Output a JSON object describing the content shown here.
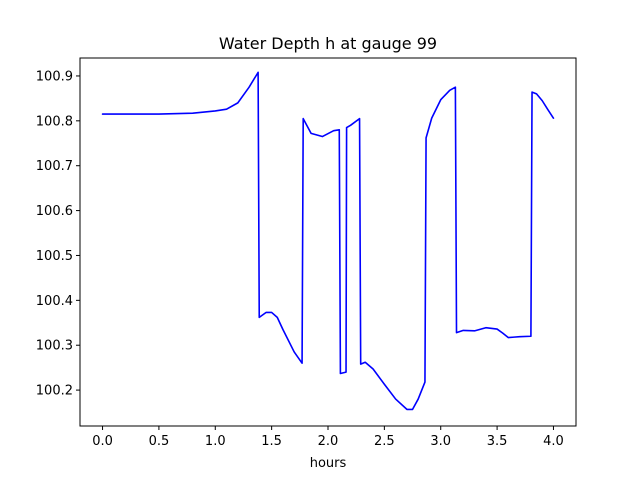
{
  "chart_data": {
    "type": "line",
    "title": "Water Depth h at gauge 99",
    "xlabel": "hours",
    "ylabel": "",
    "xlim": [
      -0.2,
      4.2
    ],
    "ylim": [
      100.12,
      100.94
    ],
    "grid": false,
    "x_ticks": [
      0.0,
      0.5,
      1.0,
      1.5,
      2.0,
      2.5,
      3.0,
      3.5,
      4.0
    ],
    "x_tick_labels": [
      "0.0",
      "0.5",
      "1.0",
      "1.5",
      "2.0",
      "2.5",
      "3.0",
      "3.5",
      "4.0"
    ],
    "y_ticks": [
      100.2,
      100.3,
      100.4,
      100.5,
      100.6,
      100.7,
      100.8,
      100.9
    ],
    "y_tick_labels": [
      "100.2",
      "100.3",
      "100.4",
      "100.5",
      "100.6",
      "100.7",
      "100.8",
      "100.9"
    ],
    "series": [
      {
        "color": "#0000ff",
        "x": [
          0.0,
          0.5,
          0.8,
          1.0,
          1.1,
          1.2,
          1.3,
          1.38,
          1.39,
          1.45,
          1.5,
          1.55,
          1.6,
          1.7,
          1.77,
          1.78,
          1.85,
          1.95,
          2.05,
          2.1,
          2.11,
          2.16,
          2.165,
          2.2,
          2.28,
          2.29,
          2.33,
          2.4,
          2.5,
          2.6,
          2.7,
          2.75,
          2.8,
          2.86,
          2.87,
          2.92,
          3.0,
          3.08,
          3.13,
          3.14,
          3.2,
          3.3,
          3.4,
          3.5,
          3.55,
          3.6,
          3.65,
          3.7,
          3.8,
          3.81,
          3.85,
          3.9,
          3.95,
          4.0
        ],
        "y": [
          100.815,
          100.815,
          100.817,
          100.822,
          100.826,
          100.84,
          100.875,
          100.908,
          100.362,
          100.373,
          100.373,
          100.362,
          100.335,
          100.285,
          100.26,
          100.805,
          100.772,
          100.765,
          100.778,
          100.78,
          100.237,
          100.24,
          100.785,
          100.79,
          100.805,
          100.258,
          100.262,
          100.247,
          100.213,
          100.18,
          100.157,
          100.157,
          100.18,
          100.218,
          100.762,
          100.806,
          100.847,
          100.868,
          100.875,
          100.328,
          100.333,
          100.332,
          100.339,
          100.336,
          100.327,
          100.317,
          100.318,
          100.319,
          100.32,
          100.864,
          100.86,
          100.845,
          100.825,
          100.806
        ]
      }
    ]
  }
}
